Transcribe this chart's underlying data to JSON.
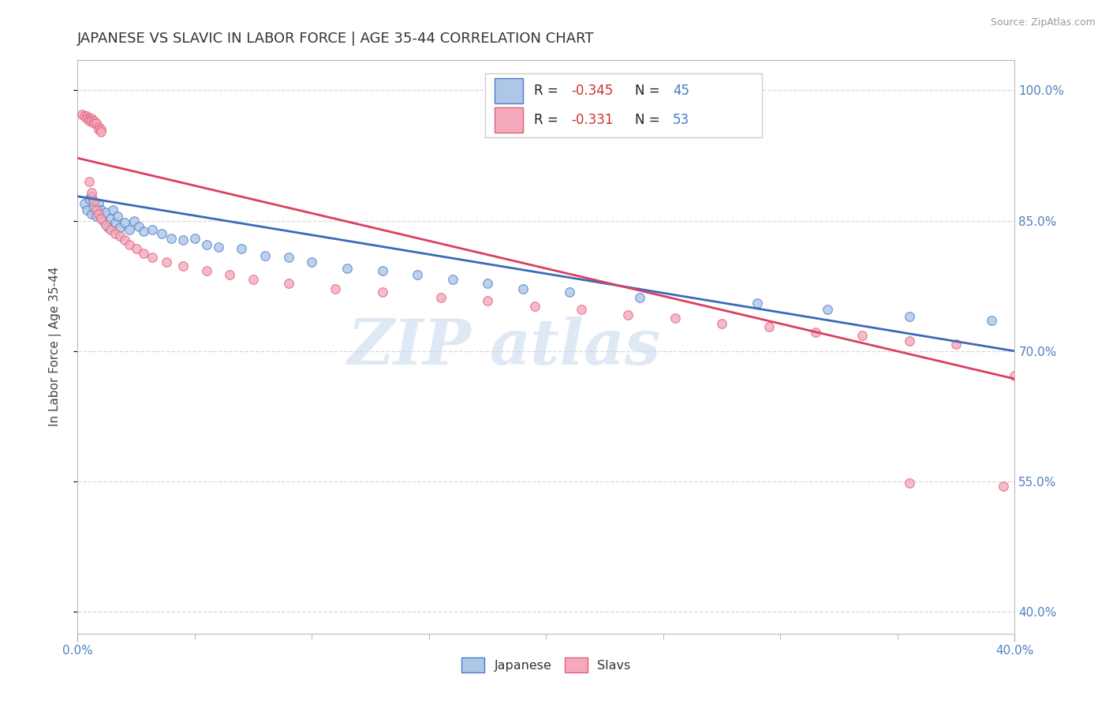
{
  "title": "JAPANESE VS SLAVIC IN LABOR FORCE | AGE 35-44 CORRELATION CHART",
  "source": "Source: ZipAtlas.com",
  "ylabel": "In Labor Force | Age 35-44",
  "yticks": [
    0.4,
    0.55,
    0.7,
    0.85,
    1.0
  ],
  "ytick_labels": [
    "40.0%",
    "55.0%",
    "70.0%",
    "85.0%",
    "100.0%"
  ],
  "xmin": 0.0,
  "xmax": 0.4,
  "ymin": 0.375,
  "ymax": 1.035,
  "watermark_zip": "ZIP",
  "watermark_atlas": "atlas",
  "leg_jap_R": "-0.345",
  "leg_jap_N": "45",
  "leg_slav_R": "-0.331",
  "leg_slav_N": "53",
  "japanese_fill": "#aec6e8",
  "slavs_fill": "#f4aabb",
  "japanese_edge": "#4a7cc9",
  "slavs_edge": "#e0607a",
  "japanese_line": "#3a6ab8",
  "slavs_line": "#d84060",
  "japanese_scatter": [
    [
      0.003,
      0.87
    ],
    [
      0.004,
      0.862
    ],
    [
      0.005,
      0.875
    ],
    [
      0.006,
      0.858
    ],
    [
      0.006,
      0.878
    ],
    [
      0.007,
      0.865
    ],
    [
      0.008,
      0.855
    ],
    [
      0.009,
      0.87
    ],
    [
      0.01,
      0.862
    ],
    [
      0.011,
      0.85
    ],
    [
      0.012,
      0.86
    ],
    [
      0.013,
      0.842
    ],
    [
      0.014,
      0.852
    ],
    [
      0.015,
      0.862
    ],
    [
      0.016,
      0.848
    ],
    [
      0.017,
      0.855
    ],
    [
      0.018,
      0.842
    ],
    [
      0.02,
      0.848
    ],
    [
      0.022,
      0.84
    ],
    [
      0.024,
      0.85
    ],
    [
      0.026,
      0.843
    ],
    [
      0.028,
      0.838
    ],
    [
      0.032,
      0.84
    ],
    [
      0.036,
      0.835
    ],
    [
      0.04,
      0.83
    ],
    [
      0.045,
      0.828
    ],
    [
      0.05,
      0.83
    ],
    [
      0.055,
      0.822
    ],
    [
      0.06,
      0.82
    ],
    [
      0.07,
      0.818
    ],
    [
      0.08,
      0.81
    ],
    [
      0.09,
      0.808
    ],
    [
      0.1,
      0.802
    ],
    [
      0.115,
      0.795
    ],
    [
      0.13,
      0.792
    ],
    [
      0.145,
      0.788
    ],
    [
      0.16,
      0.782
    ],
    [
      0.175,
      0.778
    ],
    [
      0.19,
      0.772
    ],
    [
      0.21,
      0.768
    ],
    [
      0.24,
      0.762
    ],
    [
      0.29,
      0.755
    ],
    [
      0.32,
      0.748
    ],
    [
      0.355,
      0.74
    ],
    [
      0.39,
      0.735
    ]
  ],
  "slavs_scatter": [
    [
      0.002,
      0.972
    ],
    [
      0.003,
      0.97
    ],
    [
      0.004,
      0.97
    ],
    [
      0.004,
      0.968
    ],
    [
      0.005,
      0.968
    ],
    [
      0.005,
      0.965
    ],
    [
      0.006,
      0.968
    ],
    [
      0.006,
      0.965
    ],
    [
      0.007,
      0.965
    ],
    [
      0.007,
      0.962
    ],
    [
      0.008,
      0.962
    ],
    [
      0.009,
      0.958
    ],
    [
      0.009,
      0.955
    ],
    [
      0.01,
      0.955
    ],
    [
      0.01,
      0.952
    ],
    [
      0.005,
      0.895
    ],
    [
      0.006,
      0.882
    ],
    [
      0.007,
      0.872
    ],
    [
      0.008,
      0.862
    ],
    [
      0.009,
      0.858
    ],
    [
      0.01,
      0.852
    ],
    [
      0.012,
      0.845
    ],
    [
      0.014,
      0.84
    ],
    [
      0.016,
      0.835
    ],
    [
      0.018,
      0.832
    ],
    [
      0.02,
      0.828
    ],
    [
      0.022,
      0.822
    ],
    [
      0.025,
      0.818
    ],
    [
      0.028,
      0.812
    ],
    [
      0.032,
      0.808
    ],
    [
      0.038,
      0.802
    ],
    [
      0.045,
      0.798
    ],
    [
      0.055,
      0.792
    ],
    [
      0.065,
      0.788
    ],
    [
      0.075,
      0.782
    ],
    [
      0.09,
      0.778
    ],
    [
      0.11,
      0.772
    ],
    [
      0.13,
      0.768
    ],
    [
      0.155,
      0.762
    ],
    [
      0.175,
      0.758
    ],
    [
      0.195,
      0.752
    ],
    [
      0.215,
      0.748
    ],
    [
      0.235,
      0.742
    ],
    [
      0.255,
      0.738
    ],
    [
      0.275,
      0.732
    ],
    [
      0.295,
      0.728
    ],
    [
      0.315,
      0.722
    ],
    [
      0.335,
      0.718
    ],
    [
      0.355,
      0.712
    ],
    [
      0.375,
      0.708
    ],
    [
      0.355,
      0.548
    ],
    [
      0.395,
      0.545
    ],
    [
      0.4,
      0.672
    ]
  ],
  "japanese_trend_x": [
    0.0,
    0.4
  ],
  "japanese_trend_y": [
    0.878,
    0.7
  ],
  "slavs_trend_x": [
    0.0,
    0.4
  ],
  "slavs_trend_y": [
    0.922,
    0.668
  ],
  "grid_color": "#d8d8d8",
  "bg_color": "#ffffff",
  "tick_color": "#5080c0",
  "title_color": "#333333",
  "label_color": "#444444"
}
